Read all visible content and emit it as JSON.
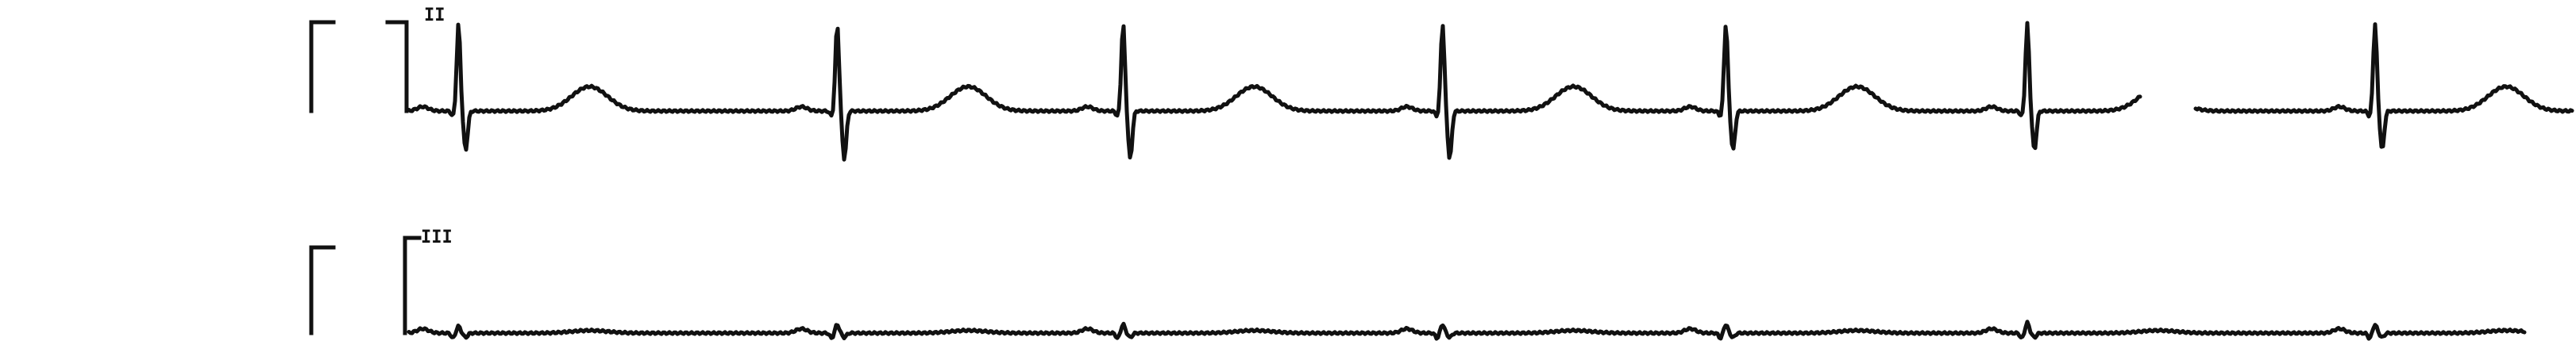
{
  "strip": {
    "background_color": "#ffffff",
    "ink_color": "#111111",
    "leads": [
      {
        "id": "lead-a",
        "label": "II",
        "beats": [
          {
            "x": 0.178,
            "r": 1.0,
            "s": 0.45,
            "t": 0.28
          },
          {
            "x": 0.325,
            "r": 1.0,
            "s": 0.55,
            "t": 0.28
          },
          {
            "x": 0.436,
            "r": 1.0,
            "s": 0.55,
            "t": 0.28
          },
          {
            "x": 0.56,
            "r": 1.0,
            "s": 0.55,
            "t": 0.28
          },
          {
            "x": 0.67,
            "r": 1.0,
            "s": 0.45,
            "t": 0.28
          },
          {
            "x": 0.787,
            "r": 1.0,
            "s": 0.45,
            "t": 0.28
          },
          {
            "x": 0.922,
            "r": 1.0,
            "s": 0.45,
            "t": 0.28
          }
        ]
      },
      {
        "id": "lead-b",
        "label": "III",
        "beats": [
          {
            "x": 0.178,
            "r": 0.08,
            "s": 0.05,
            "t": 0.03
          },
          {
            "x": 0.325,
            "r": 0.1,
            "s": 0.05,
            "t": 0.03
          },
          {
            "x": 0.436,
            "r": 0.1,
            "s": 0.05,
            "t": 0.03
          },
          {
            "x": 0.56,
            "r": 0.1,
            "s": 0.05,
            "t": 0.03
          },
          {
            "x": 0.67,
            "r": 0.1,
            "s": 0.05,
            "t": 0.03
          },
          {
            "x": 0.787,
            "r": 0.12,
            "s": 0.05,
            "t": 0.03
          },
          {
            "x": 0.922,
            "r": 0.1,
            "s": 0.05,
            "t": 0.03
          }
        ]
      }
    ]
  }
}
